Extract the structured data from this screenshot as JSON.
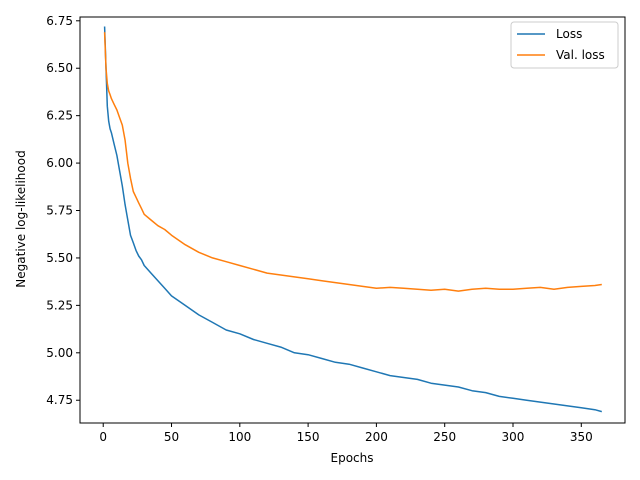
{
  "chart_data": {
    "type": "line",
    "title": "",
    "xlabel": "Epochs",
    "ylabel": "Negative log-likelihood",
    "xlim": [
      -17,
      382
    ],
    "ylim": [
      4.63,
      6.77
    ],
    "xticks": [
      0,
      50,
      100,
      150,
      200,
      250,
      300,
      350
    ],
    "yticks": [
      4.75,
      5.0,
      5.25,
      5.5,
      5.75,
      6.0,
      6.25,
      6.5,
      6.75
    ],
    "grid": false,
    "legend": "top-right",
    "series": [
      {
        "name": "Loss",
        "color": "#1f77b4",
        "x": [
          1,
          2,
          3,
          4,
          5,
          6,
          8,
          10,
          12,
          14,
          16,
          18,
          20,
          22,
          24,
          26,
          28,
          30,
          35,
          40,
          45,
          50,
          60,
          70,
          80,
          90,
          100,
          110,
          120,
          130,
          140,
          150,
          160,
          170,
          180,
          190,
          200,
          210,
          220,
          230,
          240,
          250,
          260,
          270,
          280,
          290,
          300,
          310,
          320,
          330,
          340,
          350,
          360,
          365
        ],
        "y": [
          6.72,
          6.5,
          6.3,
          6.22,
          6.18,
          6.16,
          6.1,
          6.04,
          5.96,
          5.88,
          5.78,
          5.7,
          5.62,
          5.58,
          5.54,
          5.51,
          5.49,
          5.46,
          5.42,
          5.38,
          5.34,
          5.3,
          5.25,
          5.2,
          5.16,
          5.12,
          5.1,
          5.07,
          5.05,
          5.03,
          5.0,
          4.99,
          4.97,
          4.95,
          4.94,
          4.92,
          4.9,
          4.88,
          4.87,
          4.86,
          4.84,
          4.83,
          4.82,
          4.8,
          4.79,
          4.77,
          4.76,
          4.75,
          4.74,
          4.73,
          4.72,
          4.71,
          4.7,
          4.69
        ]
      },
      {
        "name": "Val. loss",
        "color": "#ff7f0e",
        "x": [
          1,
          2,
          3,
          4,
          5,
          6,
          8,
          10,
          12,
          14,
          16,
          18,
          20,
          22,
          24,
          26,
          28,
          30,
          35,
          40,
          45,
          50,
          60,
          70,
          80,
          90,
          100,
          110,
          120,
          130,
          140,
          150,
          160,
          170,
          180,
          190,
          200,
          210,
          220,
          230,
          240,
          250,
          260,
          270,
          280,
          290,
          300,
          310,
          320,
          330,
          340,
          350,
          360,
          365
        ],
        "y": [
          6.69,
          6.5,
          6.42,
          6.38,
          6.36,
          6.34,
          6.31,
          6.28,
          6.24,
          6.2,
          6.12,
          6.0,
          5.92,
          5.85,
          5.82,
          5.79,
          5.76,
          5.73,
          5.7,
          5.67,
          5.65,
          5.62,
          5.57,
          5.53,
          5.5,
          5.48,
          5.46,
          5.44,
          5.42,
          5.41,
          5.4,
          5.39,
          5.38,
          5.37,
          5.36,
          5.35,
          5.34,
          5.345,
          5.34,
          5.335,
          5.33,
          5.335,
          5.325,
          5.335,
          5.34,
          5.335,
          5.335,
          5.34,
          5.345,
          5.335,
          5.345,
          5.35,
          5.355,
          5.36
        ]
      }
    ]
  }
}
